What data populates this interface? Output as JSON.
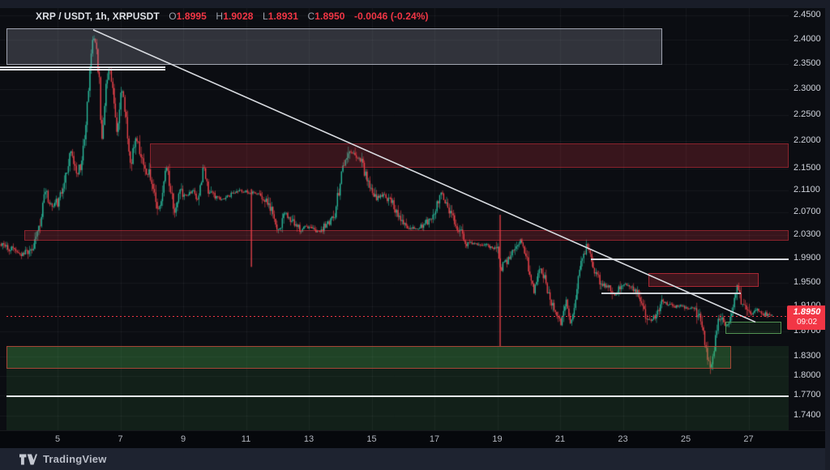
{
  "header": {
    "title": "XRP / USDT, 1h, XRPUSDT",
    "o_label": "O",
    "o": "1.8995",
    "h_label": "H",
    "h": "1.9028",
    "l_label": "L",
    "l": "1.8931",
    "c_label": "C",
    "c": "1.8950",
    "change": "-0.0046 (-0.24%)"
  },
  "watermark": {
    "brand": "TradingView"
  },
  "colors": {
    "up": "#2bbc9e",
    "down": "#f0444c",
    "grid": "rgba(255,255,255,0.05)",
    "accent_red": "#f23645",
    "badge_bg": "#f23645"
  },
  "chart_data": {
    "type": "candlestick",
    "symbol": "XRPUSDT",
    "timeframe": "1h",
    "title": "XRP / USDT, 1h, XRPUSDT",
    "last_candle": {
      "open": 1.8995,
      "high": 1.9028,
      "low": 1.8931,
      "close": 1.895,
      "change": -0.0046,
      "change_pct": -0.24
    },
    "last_price": {
      "value": "1.8950",
      "countdown": "09:02"
    },
    "x_axis": {
      "unit": "day of month",
      "ticks": [
        {
          "d": 5,
          "t": "5"
        },
        {
          "d": 7,
          "t": "7"
        },
        {
          "d": 9,
          "t": "9"
        },
        {
          "d": 11,
          "t": "11"
        },
        {
          "d": 13,
          "t": "13"
        },
        {
          "d": 15,
          "t": "15"
        },
        {
          "d": 17,
          "t": "17"
        },
        {
          "d": 19,
          "t": "19"
        },
        {
          "d": 21,
          "t": "21"
        },
        {
          "d": 23,
          "t": "23"
        },
        {
          "d": 25,
          "t": "25"
        },
        {
          "d": 27,
          "t": "27"
        }
      ]
    },
    "y_axis": {
      "scale": "log",
      "range": [
        1.715,
        2.47
      ],
      "ticks": [
        {
          "p": 2.45,
          "t": "2.4500"
        },
        {
          "p": 2.4,
          "t": "2.4000"
        },
        {
          "p": 2.35,
          "t": "2.3500"
        },
        {
          "p": 2.3,
          "t": "2.3000"
        },
        {
          "p": 2.25,
          "t": "2.2500"
        },
        {
          "p": 2.2,
          "t": "2.2000"
        },
        {
          "p": 2.15,
          "t": "2.1500"
        },
        {
          "p": 2.11,
          "t": "2.1100"
        },
        {
          "p": 2.07,
          "t": "2.0700"
        },
        {
          "p": 2.03,
          "t": "2.0300"
        },
        {
          "p": 1.99,
          "t": "1.9900"
        },
        {
          "p": 1.95,
          "t": "1.9500"
        },
        {
          "p": 1.91,
          "t": "1.9100"
        },
        {
          "p": 1.87,
          "t": "1.8700"
        },
        {
          "p": 1.83,
          "t": "1.8300"
        },
        {
          "p": 1.8,
          "t": "1.8000"
        },
        {
          "p": 1.77,
          "t": "1.7700"
        },
        {
          "p": 1.74,
          "t": "1.7400"
        }
      ]
    },
    "zones": [
      {
        "name": "demand-zone-wide",
        "day_from": 3.37,
        "day_to": null,
        "price_top": 1.847,
        "price_bottom": 1.716,
        "fill": "rgba(76,175,80,0.12)",
        "border": null
      },
      {
        "name": "demand-zone-strong",
        "day_from": 3.37,
        "day_to": 26.44,
        "price_top": 1.847,
        "price_bottom": 1.811,
        "fill": "rgba(76,175,80,0.25)",
        "border": "rgba(190,70,58,0.85)"
      },
      {
        "name": "range-box-gray",
        "day_from": 3.37,
        "day_to": 24.25,
        "price_top": 2.423,
        "price_bottom": 2.349,
        "fill": "rgba(150,156,170,0.27)",
        "border": "rgba(180,185,197,0.85)"
      },
      {
        "name": "supply-zone-upper",
        "day_from": 7.94,
        "day_to": null,
        "price_top": 2.196,
        "price_bottom": 2.151,
        "fill": "rgba(242,54,69,0.20)",
        "border": "rgba(242,54,69,0.45)"
      },
      {
        "name": "supply-zone-mid",
        "day_from": 3.94,
        "day_to": null,
        "price_top": 2.039,
        "price_bottom": 2.021,
        "fill": "rgba(242,54,69,0.20)",
        "border": "rgba(242,54,69,0.45)"
      },
      {
        "name": "supply-zone-right",
        "day_from": 23.81,
        "day_to": 27.32,
        "price_top": 1.966,
        "price_bottom": 1.942,
        "fill": "rgba(242,54,69,0.22)",
        "border": "rgba(242,54,69,0.6)"
      },
      {
        "name": "demand-box-right",
        "day_from": 26.26,
        "day_to": 28.05,
        "price_top": 1.885,
        "price_bottom": 1.866,
        "fill": "rgba(76,175,80,0.10)",
        "border": "rgba(90,160,90,0.9)"
      }
    ],
    "horizontal_lines": [
      {
        "name": "resistance-line-a",
        "day_from": 3.168,
        "day_to": 8.43,
        "price": 2.344,
        "color": "#e6e8ec",
        "width": 1.5
      },
      {
        "name": "resistance-line-b",
        "day_from": 3.168,
        "day_to": 8.43,
        "price": 2.3385,
        "color": "#e6e8ec",
        "width": 1.5
      },
      {
        "name": "level-line-1.99",
        "day_from": 21.98,
        "day_to": null,
        "price": 1.989,
        "color": "#d8dbe0",
        "width": 1.5
      },
      {
        "name": "level-line-1.93",
        "day_from": 22.32,
        "day_to": 26.75,
        "price": 1.932,
        "color": "#c9cdd3",
        "width": 2
      },
      {
        "name": "level-line-1.77",
        "day_from": 3.37,
        "day_to": null,
        "price": 1.769,
        "color": "#e6e8ec",
        "width": 1.5
      }
    ],
    "trendline": {
      "from": [
        6.135,
        2.42
      ],
      "to": [
        27.22,
        1.885
      ],
      "color": "#d9dce1"
    },
    "current_price_line": {
      "price": 1.8952,
      "style": "dotted",
      "color": "#f23645"
    },
    "long_wicks": [
      {
        "day": 19.09,
        "price_from": 2.066,
        "price_to": 1.846
      },
      {
        "day": 11.17,
        "price_from": 2.112,
        "price_to": 1.976
      }
    ],
    "price_path": [
      [
        3.17,
        2.015
      ],
      [
        3.45,
        2.008
      ],
      [
        3.7,
        2.004
      ],
      [
        3.94,
        1.998
      ],
      [
        4.2,
        2.01
      ],
      [
        4.33,
        2.025
      ],
      [
        4.5,
        2.06
      ],
      [
        4.64,
        2.105
      ],
      [
        4.75,
        2.09
      ],
      [
        4.87,
        2.078
      ],
      [
        5.0,
        2.09
      ],
      [
        5.08,
        2.088
      ],
      [
        5.2,
        2.11
      ],
      [
        5.28,
        2.14
      ],
      [
        5.4,
        2.165
      ],
      [
        5.49,
        2.175
      ],
      [
        5.58,
        2.15
      ],
      [
        5.65,
        2.14
      ],
      [
        5.72,
        2.155
      ],
      [
        5.8,
        2.16
      ],
      [
        5.88,
        2.2
      ],
      [
        5.95,
        2.25
      ],
      [
        6.03,
        2.31
      ],
      [
        6.11,
        2.38
      ],
      [
        6.18,
        2.413
      ],
      [
        6.23,
        2.4
      ],
      [
        6.3,
        2.36
      ],
      [
        6.38,
        2.3
      ],
      [
        6.44,
        2.185
      ],
      [
        6.5,
        2.24
      ],
      [
        6.55,
        2.285
      ],
      [
        6.62,
        2.32
      ],
      [
        6.68,
        2.333
      ],
      [
        6.73,
        2.325
      ],
      [
        6.78,
        2.315
      ],
      [
        6.85,
        2.27
      ],
      [
        6.9,
        2.235
      ],
      [
        6.94,
        2.22
      ],
      [
        7.0,
        2.25
      ],
      [
        7.05,
        2.29
      ],
      [
        7.09,
        2.308
      ],
      [
        7.16,
        2.27
      ],
      [
        7.21,
        2.24
      ],
      [
        7.25,
        2.22
      ],
      [
        7.31,
        2.185
      ],
      [
        7.37,
        2.156
      ],
      [
        7.45,
        2.19
      ],
      [
        7.5,
        2.205
      ],
      [
        7.55,
        2.21
      ],
      [
        7.62,
        2.19
      ],
      [
        7.7,
        2.165
      ],
      [
        7.76,
        2.155
      ],
      [
        7.85,
        2.145
      ],
      [
        7.94,
        2.14
      ],
      [
        8.03,
        2.12
      ],
      [
        8.12,
        2.1
      ],
      [
        8.22,
        2.085
      ],
      [
        8.33,
        2.078
      ],
      [
        8.42,
        2.12
      ],
      [
        8.51,
        2.158
      ],
      [
        8.6,
        2.12
      ],
      [
        8.67,
        2.095
      ],
      [
        8.74,
        2.073
      ],
      [
        8.82,
        2.085
      ],
      [
        8.9,
        2.1
      ],
      [
        9.0,
        2.105
      ],
      [
        9.1,
        2.1
      ],
      [
        9.21,
        2.104
      ],
      [
        9.35,
        2.108
      ],
      [
        9.52,
        2.092
      ],
      [
        9.6,
        2.12
      ],
      [
        9.67,
        2.152
      ],
      [
        9.75,
        2.13
      ],
      [
        9.84,
        2.11
      ],
      [
        9.93,
        2.102
      ],
      [
        10.1,
        2.097
      ],
      [
        10.26,
        2.094
      ],
      [
        10.45,
        2.1
      ],
      [
        10.65,
        2.104
      ],
      [
        10.85,
        2.108
      ],
      [
        11.06,
        2.108
      ],
      [
        11.17,
        2.104
      ],
      [
        11.3,
        2.106
      ],
      [
        11.48,
        2.103
      ],
      [
        11.65,
        2.09
      ],
      [
        11.84,
        2.073
      ],
      [
        11.95,
        2.05
      ],
      [
        12.07,
        2.036
      ],
      [
        12.2,
        2.055
      ],
      [
        12.3,
        2.068
      ],
      [
        12.45,
        2.055
      ],
      [
        12.61,
        2.05
      ],
      [
        12.77,
        2.036
      ],
      [
        12.92,
        2.046
      ],
      [
        13.08,
        2.043
      ],
      [
        13.25,
        2.038
      ],
      [
        13.39,
        2.036
      ],
      [
        13.55,
        2.05
      ],
      [
        13.7,
        2.052
      ],
      [
        13.85,
        2.068
      ],
      [
        14.01,
        2.115
      ],
      [
        14.16,
        2.16
      ],
      [
        14.32,
        2.19
      ],
      [
        14.42,
        2.178
      ],
      [
        14.52,
        2.17
      ],
      [
        14.62,
        2.175
      ],
      [
        14.73,
        2.158
      ],
      [
        14.84,
        2.14
      ],
      [
        14.94,
        2.126
      ],
      [
        15.05,
        2.105
      ],
      [
        15.17,
        2.095
      ],
      [
        15.3,
        2.1
      ],
      [
        15.43,
        2.102
      ],
      [
        15.55,
        2.095
      ],
      [
        15.68,
        2.09
      ],
      [
        15.8,
        2.075
      ],
      [
        15.94,
        2.063
      ],
      [
        16.07,
        2.05
      ],
      [
        16.2,
        2.045
      ],
      [
        16.33,
        2.042
      ],
      [
        16.46,
        2.04
      ],
      [
        16.6,
        2.045
      ],
      [
        16.74,
        2.05
      ],
      [
        16.9,
        2.062
      ],
      [
        17.05,
        2.068
      ],
      [
        17.18,
        2.1
      ],
      [
        17.26,
        2.112
      ],
      [
        17.34,
        2.095
      ],
      [
        17.41,
        2.082
      ],
      [
        17.52,
        2.065
      ],
      [
        17.62,
        2.06
      ],
      [
        17.75,
        2.045
      ],
      [
        17.88,
        2.032
      ],
      [
        18.0,
        2.022
      ],
      [
        18.14,
        2.015
      ],
      [
        18.27,
        2.018
      ],
      [
        18.39,
        2.016
      ],
      [
        18.52,
        2.014
      ],
      [
        18.65,
        2.013
      ],
      [
        18.78,
        2.01
      ],
      [
        18.91,
        2.009
      ],
      [
        19.0,
        2.007
      ],
      [
        19.06,
        2.005
      ],
      [
        19.12,
        1.972
      ],
      [
        19.2,
        1.978
      ],
      [
        19.27,
        1.984
      ],
      [
        19.38,
        1.99
      ],
      [
        19.48,
        1.998
      ],
      [
        19.56,
        2.006
      ],
      [
        19.63,
        2.01
      ],
      [
        19.7,
        2.018
      ],
      [
        19.76,
        2.024
      ],
      [
        19.85,
        2.01
      ],
      [
        19.94,
        1.998
      ],
      [
        20.02,
        1.975
      ],
      [
        20.1,
        1.955
      ],
      [
        20.15,
        1.942
      ],
      [
        20.2,
        1.936
      ],
      [
        20.28,
        1.955
      ],
      [
        20.35,
        1.972
      ],
      [
        20.43,
        1.968
      ],
      [
        20.51,
        1.96
      ],
      [
        20.6,
        1.945
      ],
      [
        20.72,
        1.926
      ],
      [
        20.82,
        1.91
      ],
      [
        20.92,
        1.9
      ],
      [
        21.0,
        1.886
      ],
      [
        21.05,
        1.877
      ],
      [
        21.12,
        1.896
      ],
      [
        21.18,
        1.912
      ],
      [
        21.23,
        1.915
      ],
      [
        21.3,
        1.9
      ],
      [
        21.36,
        1.89
      ],
      [
        21.41,
        1.886
      ],
      [
        21.48,
        1.908
      ],
      [
        21.57,
        1.937
      ],
      [
        21.65,
        1.972
      ],
      [
        21.75,
        1.988
      ],
      [
        21.82,
        1.998
      ],
      [
        21.9,
        2.012
      ],
      [
        21.98,
        1.995
      ],
      [
        22.06,
        1.975
      ],
      [
        22.15,
        1.965
      ],
      [
        22.26,
        1.956
      ],
      [
        22.38,
        1.95
      ],
      [
        22.52,
        1.946
      ],
      [
        22.65,
        1.935
      ],
      [
        22.78,
        1.926
      ],
      [
        22.9,
        1.938
      ],
      [
        23.04,
        1.948
      ],
      [
        23.17,
        1.944
      ],
      [
        23.3,
        1.94
      ],
      [
        23.42,
        1.936
      ],
      [
        23.55,
        1.93
      ],
      [
        23.65,
        1.915
      ],
      [
        23.74,
        1.9
      ],
      [
        23.85,
        1.89
      ],
      [
        23.94,
        1.887
      ],
      [
        24.03,
        1.895
      ],
      [
        24.12,
        1.9
      ],
      [
        24.22,
        1.912
      ],
      [
        24.33,
        1.918
      ],
      [
        24.45,
        1.914
      ],
      [
        24.59,
        1.913
      ],
      [
        24.72,
        1.91
      ],
      [
        24.85,
        1.911
      ],
      [
        24.98,
        1.908
      ],
      [
        25.1,
        1.906
      ],
      [
        25.2,
        1.908
      ],
      [
        25.31,
        1.908
      ],
      [
        25.39,
        1.9
      ],
      [
        25.46,
        1.893
      ],
      [
        25.55,
        1.872
      ],
      [
        25.62,
        1.858
      ],
      [
        25.68,
        1.84
      ],
      [
        25.72,
        1.828
      ],
      [
        25.78,
        1.818
      ],
      [
        25.83,
        1.812
      ],
      [
        25.89,
        1.822
      ],
      [
        25.95,
        1.846
      ],
      [
        26.02,
        1.868
      ],
      [
        26.08,
        1.884
      ],
      [
        26.15,
        1.888
      ],
      [
        26.21,
        1.886
      ],
      [
        26.28,
        1.882
      ],
      [
        26.34,
        1.882
      ],
      [
        26.41,
        1.886
      ],
      [
        26.47,
        1.89
      ],
      [
        26.54,
        1.912
      ],
      [
        26.6,
        1.932
      ],
      [
        26.66,
        1.942
      ],
      [
        26.7,
        1.938
      ],
      [
        26.77,
        1.925
      ],
      [
        26.83,
        1.916
      ],
      [
        26.9,
        1.91
      ],
      [
        26.96,
        1.908
      ],
      [
        27.04,
        1.896
      ],
      [
        27.12,
        1.892
      ],
      [
        27.2,
        1.9
      ],
      [
        27.27,
        1.904
      ],
      [
        27.35,
        1.902
      ],
      [
        27.43,
        1.9
      ],
      [
        27.5,
        1.897
      ],
      [
        27.58,
        1.898
      ],
      [
        27.67,
        1.896
      ],
      [
        27.76,
        1.895
      ]
    ]
  }
}
